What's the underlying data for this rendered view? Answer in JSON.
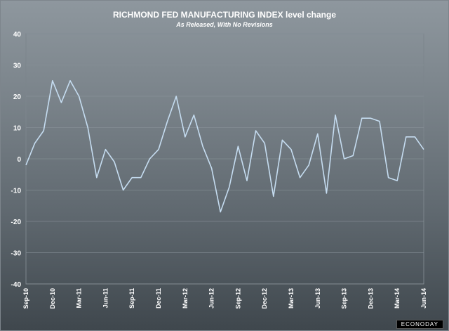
{
  "chart_data": {
    "type": "line",
    "title": "RICHMOND FED MANUFACTURING INDEX level change",
    "subtitle": "As Released, With No Revisions",
    "xlabel": "",
    "ylabel": "",
    "ylim": [
      -40,
      40
    ],
    "yticks": [
      40,
      30,
      20,
      10,
      0,
      -10,
      -20,
      -30,
      -40
    ],
    "grid": true,
    "x": [
      "Sep-10",
      "Oct-10",
      "Nov-10",
      "Dec-10",
      "Jan-11",
      "Feb-11",
      "Mar-11",
      "Apr-11",
      "May-11",
      "Jun-11",
      "Jul-11",
      "Aug-11",
      "Sep-11",
      "Oct-11",
      "Nov-11",
      "Dec-11",
      "Jan-12",
      "Feb-12",
      "Mar-12",
      "Apr-12",
      "May-12",
      "Jun-12",
      "Jul-12",
      "Aug-12",
      "Sep-12",
      "Oct-12",
      "Nov-12",
      "Dec-12",
      "Jan-13",
      "Feb-13",
      "Mar-13",
      "Apr-13",
      "May-13",
      "Jun-13",
      "Jul-13",
      "Aug-13",
      "Sep-13",
      "Oct-13",
      "Nov-13",
      "Dec-13",
      "Jan-14",
      "Feb-14",
      "Mar-14",
      "Apr-14",
      "May-14",
      "Jun-14"
    ],
    "xtick_labels": [
      "Sep-10",
      "Dec-10",
      "Mar-11",
      "Jun-11",
      "Sep-11",
      "Dec-11",
      "Mar-12",
      "Jun-12",
      "Sep-12",
      "Dec-12",
      "Mar-13",
      "Jun-13",
      "Sep-13",
      "Dec-13",
      "Mar-14",
      "Jun-14"
    ],
    "series": [
      {
        "values": [
          -2,
          5,
          9,
          25,
          18,
          25,
          20,
          10,
          -6,
          3,
          -1,
          -10,
          -6,
          -6,
          0,
          3,
          12,
          20,
          7,
          14,
          4,
          -3,
          -17,
          -9,
          4,
          -7,
          9,
          5,
          -12,
          6,
          3,
          -6,
          -2,
          8,
          -11,
          14,
          0,
          1,
          13,
          13,
          12,
          -6,
          -7,
          7,
          7,
          3
        ],
        "color": "#c5dcf0"
      }
    ]
  },
  "logo_text": "ECONODAY"
}
